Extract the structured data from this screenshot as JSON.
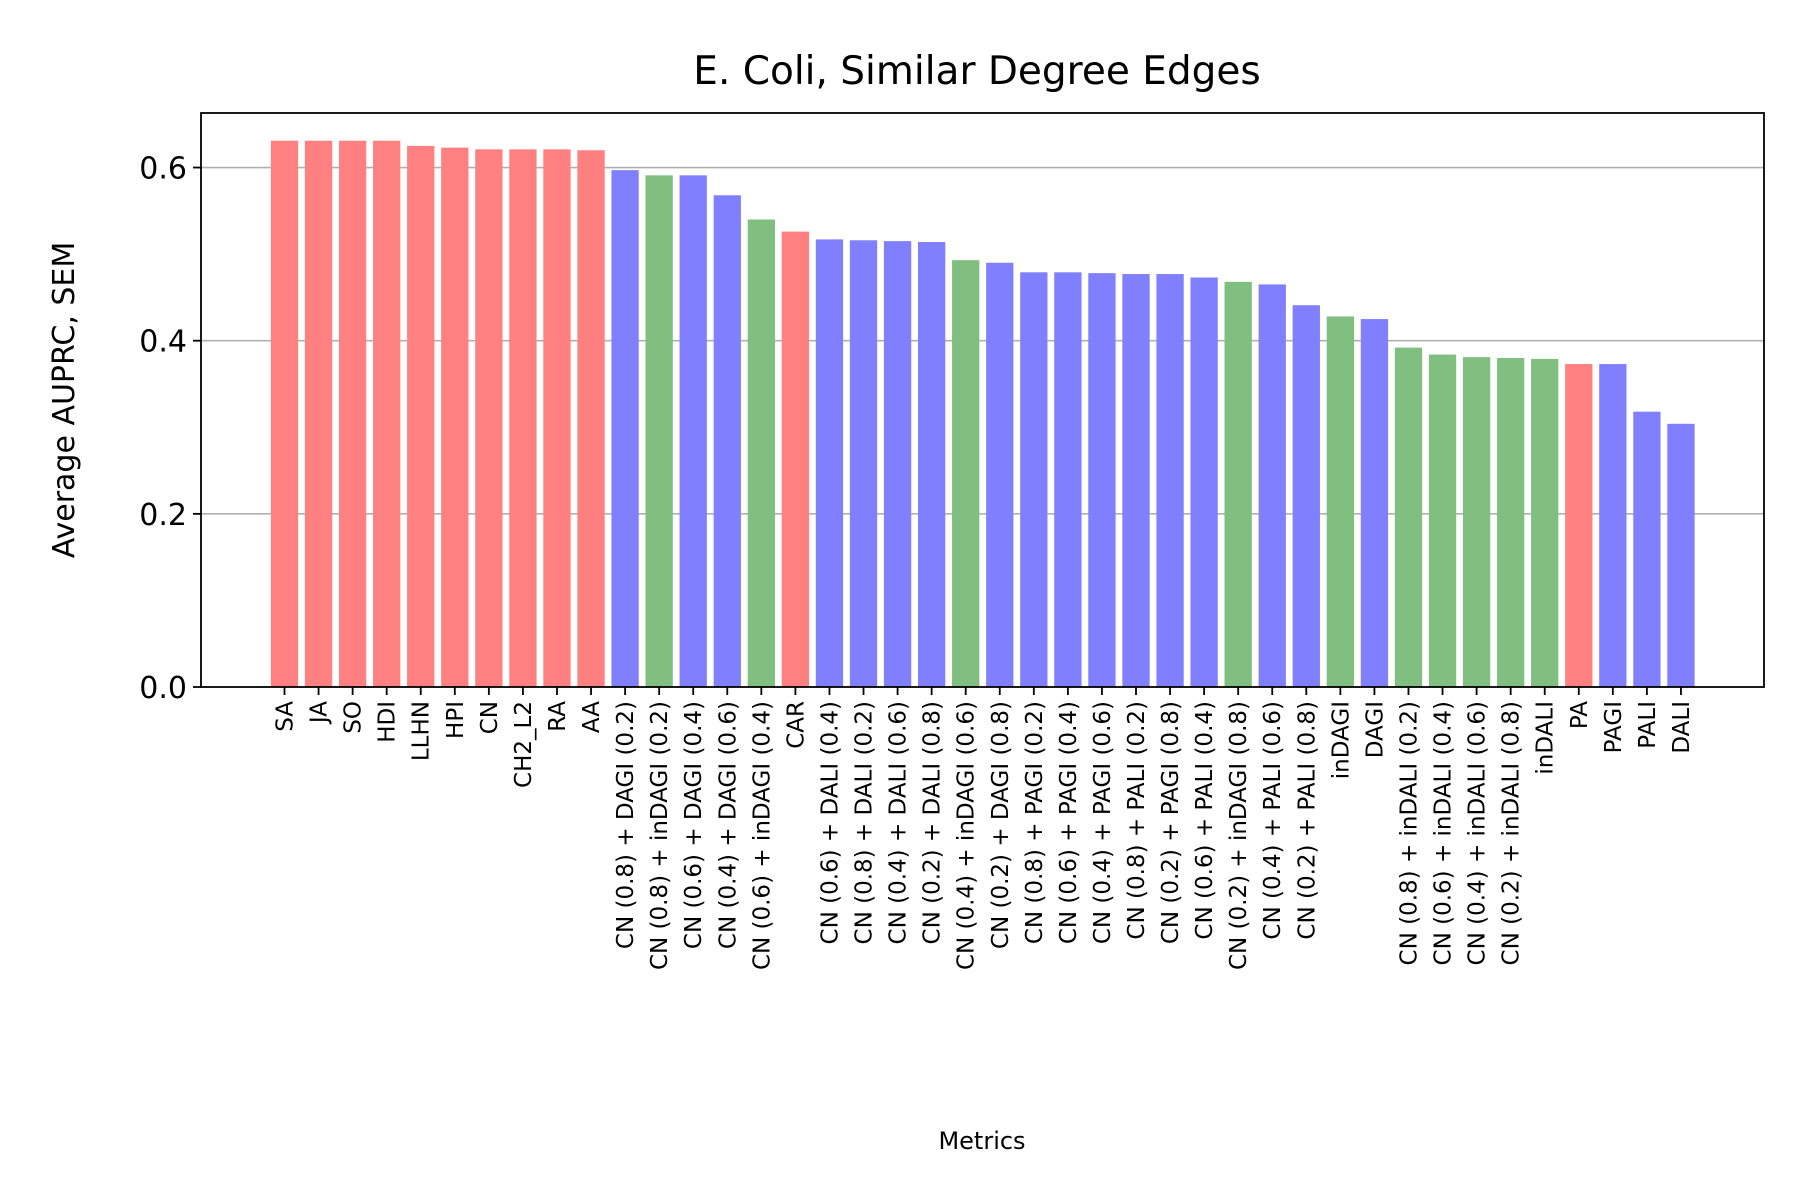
{
  "chart_data": {
    "type": "bar",
    "title": "E. Coli, Similar Degree Edges",
    "xlabel": "Metrics",
    "ylabel": "Average AUPRC, SEM",
    "ylim": [
      0,
      0.663
    ],
    "yticks": [
      "0.0",
      "0.2",
      "0.4",
      "0.6"
    ],
    "grid": "y",
    "colors": {
      "red": "#ff8080",
      "green": "#80bf80",
      "blue": "#8080ff"
    },
    "categories": [
      "SA",
      "JA",
      "SO",
      "HDI",
      "LLHN",
      "HPI",
      "CN",
      "CH2_L2",
      "RA",
      "AA",
      "CN (0.8) + DAGI (0.2)",
      "CN (0.8) + inDAGI (0.2)",
      "CN (0.6) + DAGI (0.4)",
      "CN (0.4) + DAGI (0.6)",
      "CN (0.6) + inDAGI (0.4)",
      "CAR",
      "CN (0.6) + DALI (0.4)",
      "CN (0.8) + DALI (0.2)",
      "CN (0.4) + DALI (0.6)",
      "CN (0.2) + DALI (0.8)",
      "CN (0.4) + inDAGI (0.6)",
      "CN (0.2) + DAGI (0.8)",
      "CN (0.8) + PAGI (0.2)",
      "CN (0.6) + PAGI (0.4)",
      "CN (0.4) + PAGI (0.6)",
      "CN (0.8) + PALI (0.2)",
      "CN (0.2) + PAGI (0.8)",
      "CN (0.6) + PALI (0.4)",
      "CN (0.2) + inDAGI (0.8)",
      "CN (0.4) + PALI (0.6)",
      "CN (0.2) + PALI (0.8)",
      "inDAGI",
      "DAGI",
      "CN (0.8) + inDALI (0.2)",
      "CN (0.6) + inDALI (0.4)",
      "CN (0.4) + inDALI (0.6)",
      "CN (0.2) + inDALI (0.8)",
      "inDALI",
      "PA",
      "PAGI",
      "PALI",
      "DALI"
    ],
    "values": [
      0.631,
      0.631,
      0.631,
      0.631,
      0.625,
      0.623,
      0.621,
      0.621,
      0.621,
      0.62,
      0.597,
      0.591,
      0.591,
      0.568,
      0.54,
      0.526,
      0.517,
      0.516,
      0.515,
      0.514,
      0.493,
      0.49,
      0.479,
      0.479,
      0.478,
      0.477,
      0.477,
      0.473,
      0.468,
      0.465,
      0.441,
      0.428,
      0.425,
      0.392,
      0.384,
      0.381,
      0.38,
      0.379,
      0.373,
      0.373,
      0.318,
      0.304
    ],
    "bar_colors": [
      "red",
      "red",
      "red",
      "red",
      "red",
      "red",
      "red",
      "red",
      "red",
      "red",
      "blue",
      "green",
      "blue",
      "blue",
      "green",
      "red",
      "blue",
      "blue",
      "blue",
      "blue",
      "green",
      "blue",
      "blue",
      "blue",
      "blue",
      "blue",
      "blue",
      "blue",
      "green",
      "blue",
      "blue",
      "green",
      "blue",
      "green",
      "green",
      "green",
      "green",
      "green",
      "red",
      "blue",
      "blue",
      "blue"
    ]
  }
}
